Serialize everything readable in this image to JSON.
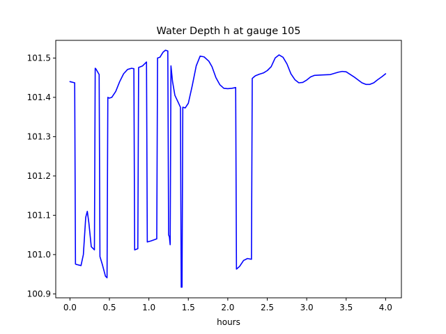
{
  "chart_data": {
    "type": "line",
    "title": "Water Depth h at gauge 105",
    "xlabel": "hours",
    "ylabel": "",
    "xlim": [
      -0.18,
      4.2
    ],
    "ylim": [
      100.89,
      101.545
    ],
    "xticks": [
      0.0,
      0.5,
      1.0,
      1.5,
      2.0,
      2.5,
      3.0,
      3.5,
      4.0
    ],
    "xtick_labels": [
      "0.0",
      "0.5",
      "1.0",
      "1.5",
      "2.0",
      "2.5",
      "3.0",
      "3.5",
      "4.0"
    ],
    "yticks": [
      100.9,
      101.0,
      101.1,
      101.2,
      101.3,
      101.4,
      101.5
    ],
    "ytick_labels": [
      "100.9",
      "101.0",
      "101.1",
      "101.2",
      "101.3",
      "101.4",
      "101.5"
    ],
    "grid": false,
    "series": [
      {
        "color": "#0000ff",
        "x": [
          0.0,
          0.06,
          0.07,
          0.08,
          0.14,
          0.17,
          0.2,
          0.22,
          0.24,
          0.27,
          0.31,
          0.32,
          0.33,
          0.37,
          0.38,
          0.41,
          0.45,
          0.47,
          0.48,
          0.5,
          0.53,
          0.58,
          0.63,
          0.68,
          0.73,
          0.78,
          0.81,
          0.82,
          0.86,
          0.87,
          0.92,
          0.97,
          0.98,
          1.03,
          1.1,
          1.11,
          1.14,
          1.18,
          1.21,
          1.24,
          1.25,
          1.26,
          1.27,
          1.28,
          1.3,
          1.33,
          1.37,
          1.4,
          1.41,
          1.42,
          1.43,
          1.46,
          1.5,
          1.55,
          1.6,
          1.65,
          1.7,
          1.76,
          1.8,
          1.85,
          1.9,
          1.95,
          2.0,
          2.05,
          2.1,
          2.11,
          2.15,
          2.2,
          2.25,
          2.3,
          2.31,
          2.32,
          2.35,
          2.4,
          2.45,
          2.5,
          2.55,
          2.6,
          2.65,
          2.7,
          2.75,
          2.8,
          2.85,
          2.9,
          2.95,
          3.0,
          3.05,
          3.1,
          3.2,
          3.3,
          3.4,
          3.45,
          3.5,
          3.6,
          3.7,
          3.75,
          3.8,
          3.85,
          3.9,
          3.95,
          4.0
        ],
        "y": [
          101.44,
          101.437,
          100.976,
          100.975,
          100.972,
          101.0,
          101.095,
          101.11,
          101.08,
          101.02,
          101.012,
          101.474,
          101.472,
          101.458,
          100.995,
          100.975,
          100.945,
          100.941,
          101.4,
          101.398,
          101.4,
          101.415,
          101.44,
          101.46,
          101.471,
          101.474,
          101.473,
          101.012,
          101.015,
          101.476,
          101.48,
          101.49,
          101.032,
          101.035,
          101.04,
          101.5,
          101.502,
          101.515,
          101.52,
          101.518,
          101.05,
          101.045,
          101.025,
          101.48,
          101.44,
          101.405,
          101.388,
          101.375,
          100.917,
          100.917,
          101.375,
          101.373,
          101.385,
          101.43,
          101.48,
          101.505,
          101.503,
          101.492,
          101.478,
          101.45,
          101.432,
          101.423,
          101.422,
          101.423,
          101.425,
          100.963,
          100.97,
          100.985,
          100.99,
          100.988,
          101.448,
          101.45,
          101.455,
          101.459,
          101.462,
          101.468,
          101.478,
          101.5,
          101.508,
          101.502,
          101.485,
          101.46,
          101.445,
          101.437,
          101.438,
          101.444,
          101.452,
          101.456,
          101.457,
          101.458,
          101.464,
          101.466,
          101.465,
          101.452,
          101.437,
          101.433,
          101.433,
          101.437,
          101.445,
          101.452,
          101.46
        ]
      }
    ]
  }
}
